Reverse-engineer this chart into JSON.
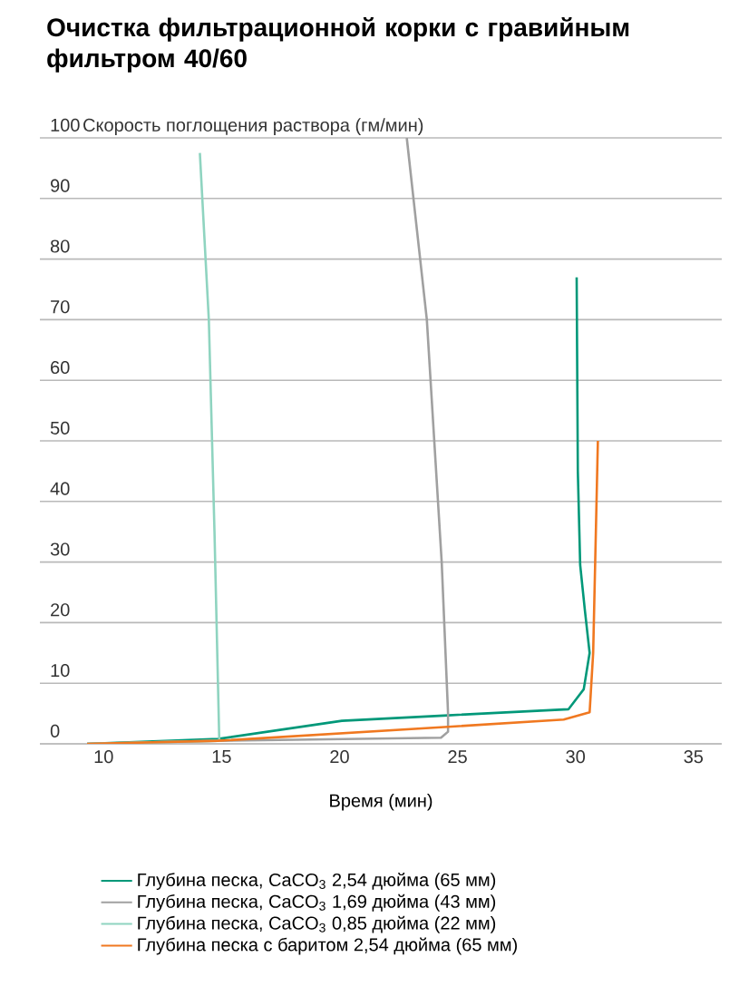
{
  "chart_data": {
    "type": "line",
    "title": "**Очистка фильтрационной корки с гравийным фильтром 40/60**",
    "ylabel": "Скорость поглощения раствора (гм/мин)",
    "xlabel": "Время (мин)",
    "xlim": [
      7.3,
      36.2
    ],
    "xticks": [
      10,
      15,
      20,
      25,
      30,
      35
    ],
    "ylim": [
      0,
      100
    ],
    "yticks": [
      0,
      10,
      20,
      30,
      40,
      50,
      60,
      70,
      80,
      90,
      100
    ],
    "grid": "y",
    "legend": "bottom",
    "marker": "none",
    "line_style": "solid",
    "series": [
      {
        "name": "Глубина песка, CaCO$_{3}$ 2,54 дюйма (65 мм)",
        "color": "#009879",
        "x": [
          9.3,
          14.85,
          20.1,
          24.6,
          29.7,
          30.35,
          30.6,
          30.4,
          30.2,
          30.1,
          30.05
        ],
        "values": [
          0,
          0.8,
          3.8,
          4.7,
          5.7,
          9,
          15,
          22,
          29.5,
          45,
          77
        ]
      },
      {
        "name": "Глубина песка, CaCO$_{3}$ 1,69 дюйма (43 мм)",
        "color": "#a0a0a0",
        "x": [
          9.3,
          14.85,
          24.3,
          24.6,
          24.6,
          24.33,
          23.7,
          22.85
        ],
        "values": [
          0,
          0.5,
          1,
          2,
          5,
          30,
          70,
          100
        ]
      },
      {
        "name": "Глубина песка, CaCO$_{3}$ 0,85 дюйма (22 мм)",
        "color": "#8fd4c0",
        "x": [
          9.3,
          14.9,
          14.9,
          14.7,
          14.46,
          14.08
        ],
        "values": [
          0,
          0.5,
          1,
          35,
          70,
          97.5
        ]
      },
      {
        "name": "Глубина песка с баритом 2,54 дюйма (65 мм)",
        "color": "#f07820",
        "x": [
          9.3,
          14.85,
          24.6,
          29.5,
          30.6,
          30.75,
          30.95
        ],
        "values": [
          0,
          0.5,
          2.8,
          4,
          5.2,
          15,
          50
        ]
      }
    ]
  }
}
